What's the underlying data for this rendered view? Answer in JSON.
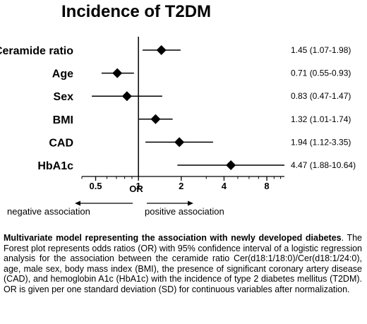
{
  "chart_data": {
    "type": "forest",
    "title": "Incidence of T2DM",
    "xlabel": "OR",
    "x_scale": "log2",
    "xlim": [
      0.4,
      10.64
    ],
    "xticks": [
      0.5,
      1,
      2,
      4,
      8
    ],
    "xtick_labels": [
      "0.5",
      "1",
      "2",
      "4",
      "8"
    ],
    "reference_line": 1,
    "rows": [
      {
        "label": "Ceramide ratio",
        "or": 1.45,
        "low": 1.07,
        "high": 1.98,
        "ci_text": "1.45 (1.07-1.98)"
      },
      {
        "label": "Age",
        "or": 0.71,
        "low": 0.55,
        "high": 0.93,
        "ci_text": "0.71 (0.55-0.93)"
      },
      {
        "label": "Sex",
        "or": 0.83,
        "low": 0.47,
        "high": 1.47,
        "ci_text": "0.83 (0.47-1.47)"
      },
      {
        "label": "BMI",
        "or": 1.32,
        "low": 1.01,
        "high": 1.74,
        "ci_text": "1.32 (1.01-1.74)"
      },
      {
        "label": "CAD",
        "or": 1.94,
        "low": 1.12,
        "high": 3.35,
        "ci_text": "1.94 (1.12-3.35)"
      },
      {
        "label": "HbA1c",
        "or": 4.47,
        "low": 1.88,
        "high": 10.64,
        "ci_text": "4.47 (1.88-10.64)"
      }
    ],
    "negative_label": "negative association",
    "positive_label": "positive association"
  },
  "caption": {
    "bold": "Multivariate model representing the association with newly developed diabetes",
    "text": ". The Forest plot represents odds ratios (OR) with 95% confidence interval of a logistic regression analysis for the association between the ceramide ratio Cer(d18:1/18:0)/Cer(d18:1/24:0), age, male sex, body mass index (BMI), the presence of significant coronary artery disease (CAD), and hemoglobin A1c (HbA1c) with the incidence of type 2 diabetes mellitus (T2DM). OR is given per one standard deviation (SD) for continuous variables after normalization."
  }
}
